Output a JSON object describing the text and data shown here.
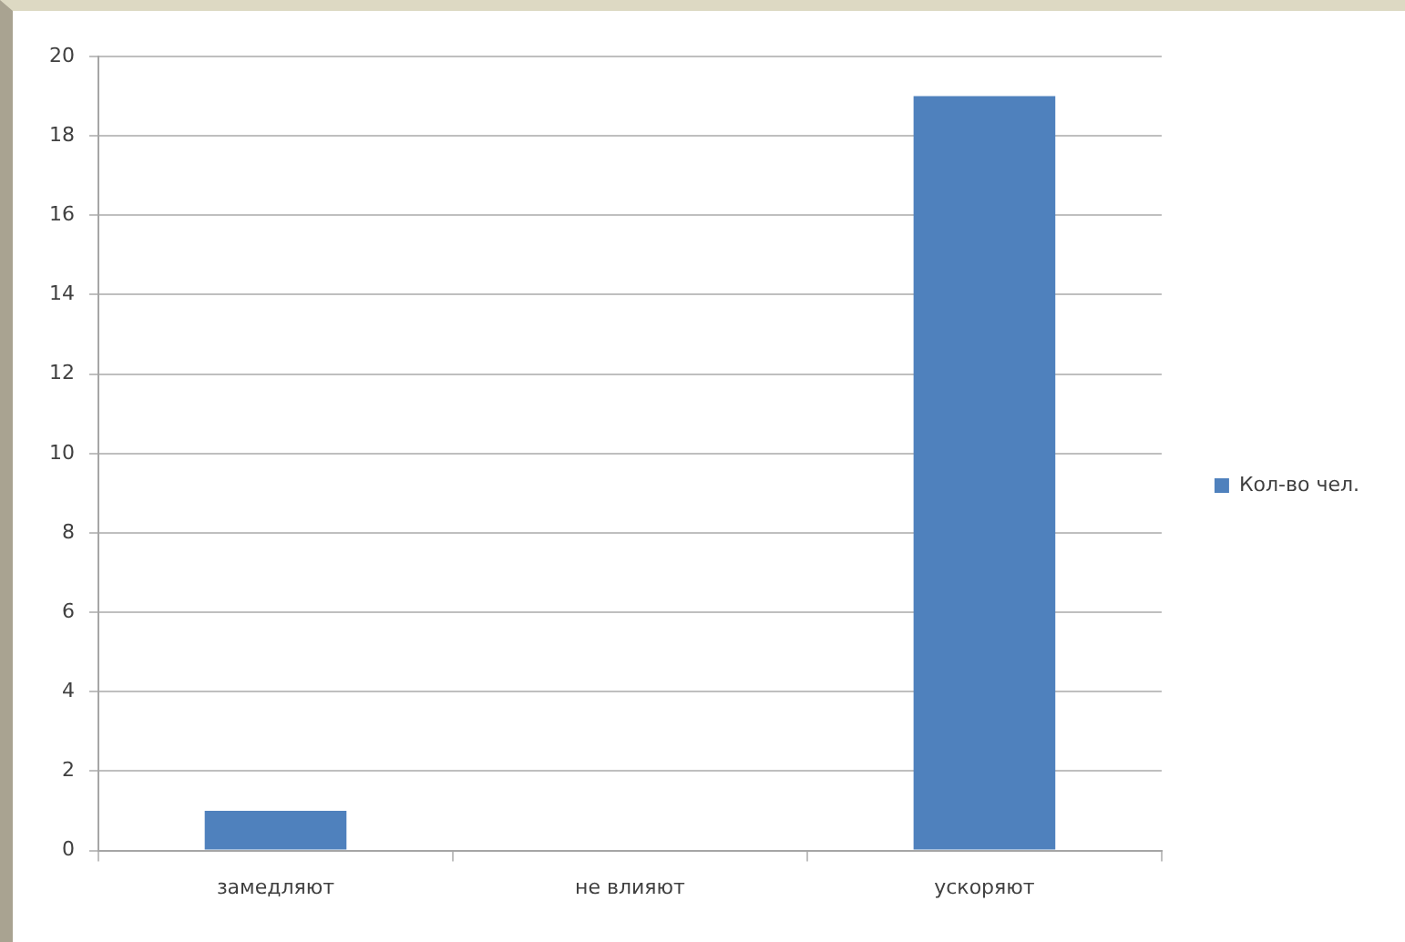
{
  "chart_data": {
    "type": "bar",
    "categories": [
      "замедляют",
      "не влияют",
      "ускоряют"
    ],
    "series": [
      {
        "name": "Кол-во чел.",
        "color": "#4f81bd",
        "values": [
          1,
          0,
          19
        ]
      }
    ],
    "ylim": [
      0,
      20
    ],
    "yticks": [
      0,
      2,
      4,
      6,
      8,
      10,
      12,
      14,
      16,
      18,
      20
    ],
    "grid": "y",
    "legend": "right"
  }
}
